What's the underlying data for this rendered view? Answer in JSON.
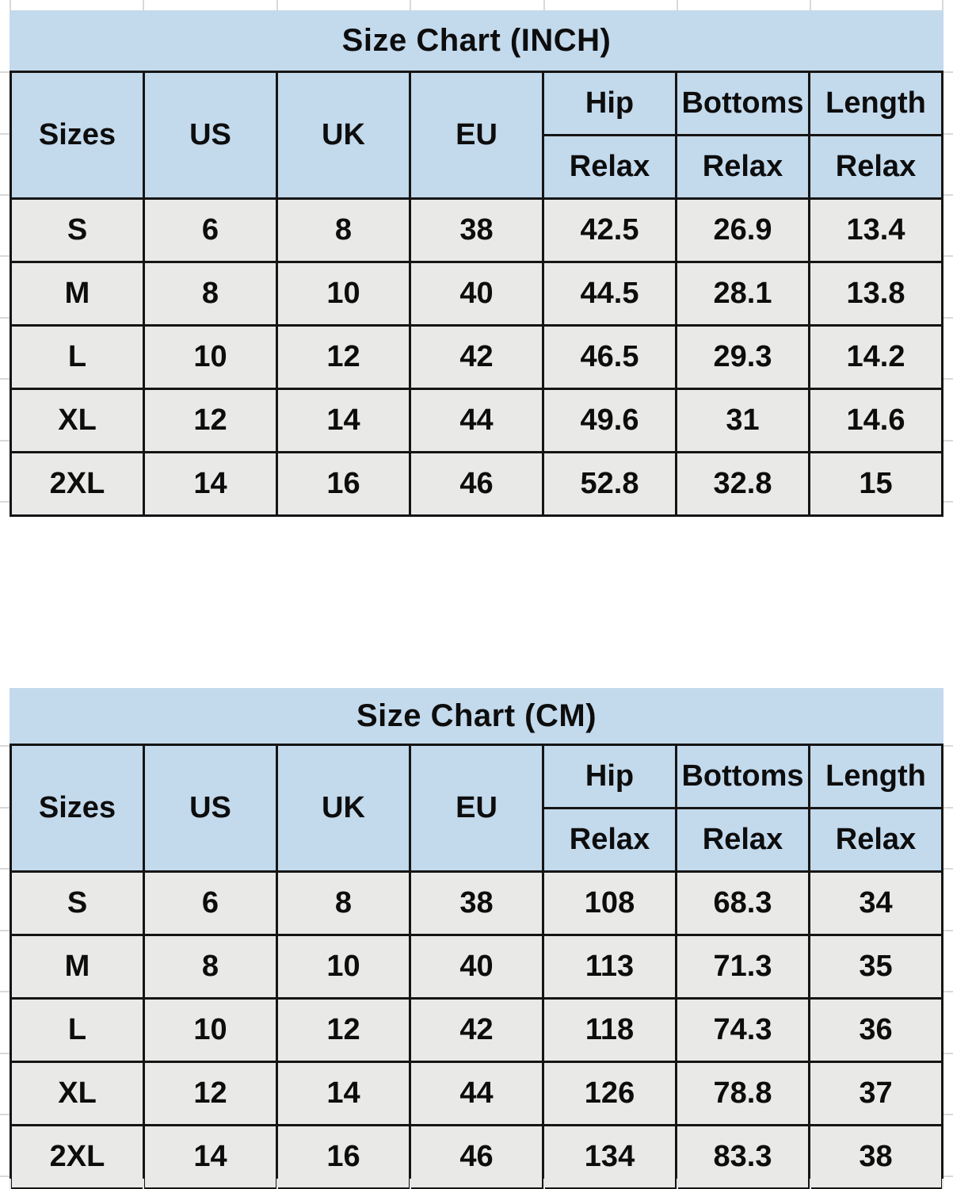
{
  "colors": {
    "header_fill": "#c3d9ec",
    "row_fill": "#e9e9e8",
    "border": "#151515",
    "flag_green": "#1f8b1f",
    "gridline": "#d9d9d9",
    "text": "#0d0d0d"
  },
  "chart_data": [
    {
      "type": "table",
      "title": "Size Chart (INCH)",
      "columns": [
        "Sizes",
        "US",
        "UK",
        "EU",
        "Hip",
        "Bottoms",
        "Length"
      ],
      "subcolumns": [
        "Relax",
        "Relax",
        "Relax"
      ],
      "flagged_columns": [
        1,
        2,
        3
      ],
      "rows": [
        [
          "S",
          "6",
          "8",
          "38",
          "42.5",
          "26.9",
          "13.4"
        ],
        [
          "M",
          "8",
          "10",
          "40",
          "44.5",
          "28.1",
          "13.8"
        ],
        [
          "L",
          "10",
          "12",
          "42",
          "46.5",
          "29.3",
          "14.2"
        ],
        [
          "XL",
          "12",
          "14",
          "44",
          "49.6",
          "31",
          "14.6"
        ],
        [
          "2XL",
          "14",
          "16",
          "46",
          "52.8",
          "32.8",
          "15"
        ]
      ]
    },
    {
      "type": "table",
      "title": "Size Chart (CM)",
      "columns": [
        "Sizes",
        "US",
        "UK",
        "EU",
        "Hip",
        "Bottoms",
        "Length"
      ],
      "subcolumns": [
        "Relax",
        "Relax",
        "Relax"
      ],
      "flagged_columns": [
        1,
        2,
        3
      ],
      "rows": [
        [
          "S",
          "6",
          "8",
          "38",
          "108",
          "68.3",
          "34"
        ],
        [
          "M",
          "8",
          "10",
          "40",
          "113",
          "71.3",
          "35"
        ],
        [
          "L",
          "10",
          "12",
          "42",
          "118",
          "74.3",
          "36"
        ],
        [
          "XL",
          "12",
          "14",
          "44",
          "126",
          "78.8",
          "37"
        ],
        [
          "2XL",
          "14",
          "16",
          "46",
          "134",
          "83.3",
          "38"
        ]
      ]
    }
  ]
}
